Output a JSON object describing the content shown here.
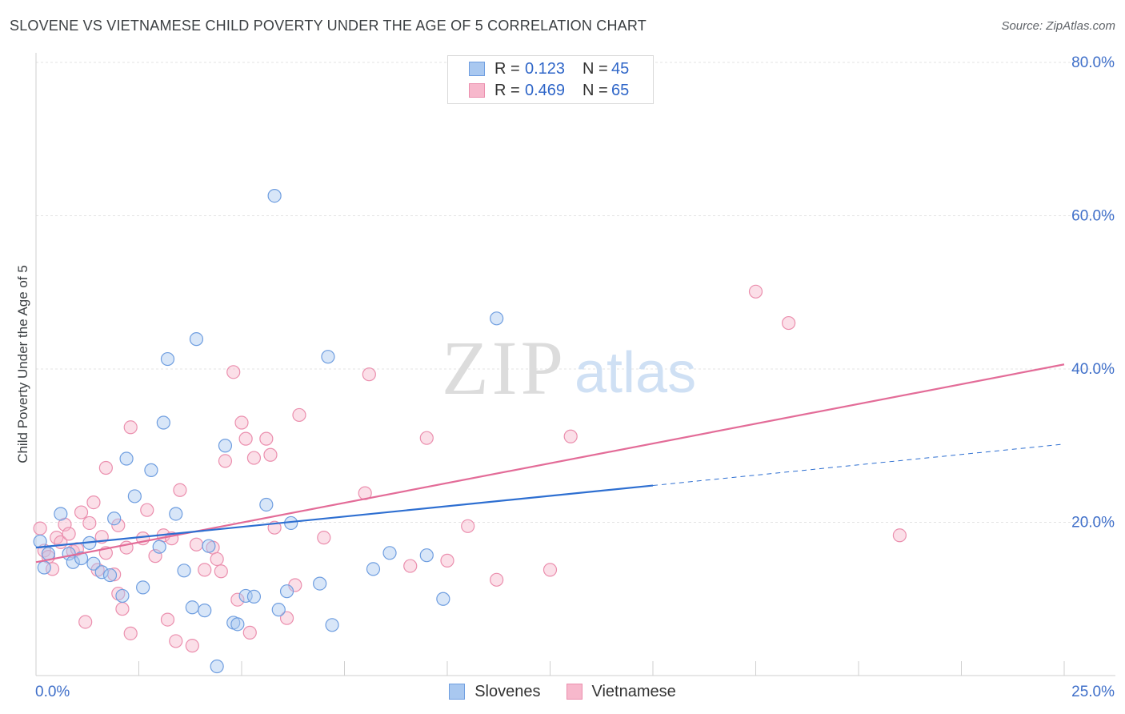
{
  "header": {
    "title": "SLOVENE VS VIETNAMESE CHILD POVERTY UNDER THE AGE OF 5 CORRELATION CHART",
    "source": "Source: ZipAtlas.com"
  },
  "legend": {
    "rows": [
      {
        "r_label": "R =",
        "r_value": "0.123",
        "n_label": "N =",
        "n_value": "45"
      },
      {
        "r_label": "R =",
        "r_value": "0.469",
        "n_label": "N =",
        "n_value": "65"
      }
    ]
  },
  "bottom_legend": {
    "series1": "Slovenes",
    "series2": "Vietnamese"
  },
  "colors": {
    "slovene_fill": "#a9c8f0",
    "slovene_stroke": "#6f9ee0",
    "slovene_line": "#2e6fd1",
    "vietnamese_fill": "#f7b8cc",
    "vietnamese_stroke": "#eb8fae",
    "vietnamese_line": "#e36c98",
    "axis_label": "#3f6fc9",
    "grid": "#e3e3e3"
  },
  "watermark": {
    "zip": "ZIP",
    "atlas": "atlas"
  },
  "chart_data": {
    "type": "scatter",
    "title": "SLOVENE VS VIETNAMESE CHILD POVERTY UNDER THE AGE OF 5 CORRELATION CHART",
    "xlabel": "",
    "ylabel": "Child Poverty Under the Age of 5",
    "xlim": [
      0,
      25
    ],
    "ylim": [
      0,
      80
    ],
    "x_tick_labels": [
      {
        "value": 0,
        "label": "0.0%"
      },
      {
        "value": 25,
        "label": "25.0%"
      }
    ],
    "y_tick_labels": [
      {
        "value": 20,
        "label": "20.0%"
      },
      {
        "value": 40,
        "label": "40.0%"
      },
      {
        "value": 60,
        "label": "60.0%"
      },
      {
        "value": 80,
        "label": "80.0%"
      }
    ],
    "series": [
      {
        "name": "Slovenes",
        "R": 0.123,
        "N": 45,
        "trend": {
          "x0": 0,
          "y0": 16.7,
          "x1": 15,
          "y1": 24.8,
          "dash_x1": 25,
          "dash_y1": 30.2
        },
        "points": [
          [
            0.1,
            17.5
          ],
          [
            0.2,
            14.1
          ],
          [
            0.3,
            15.9
          ],
          [
            0.6,
            21.1
          ],
          [
            0.8,
            15.9
          ],
          [
            0.9,
            14.8
          ],
          [
            1.1,
            15.3
          ],
          [
            1.3,
            17.3
          ],
          [
            1.4,
            14.6
          ],
          [
            1.6,
            13.5
          ],
          [
            1.8,
            13.1
          ],
          [
            1.9,
            20.5
          ],
          [
            2.1,
            10.4
          ],
          [
            2.2,
            28.3
          ],
          [
            2.4,
            23.4
          ],
          [
            2.6,
            11.5
          ],
          [
            2.8,
            26.8
          ],
          [
            3.0,
            16.8
          ],
          [
            3.1,
            33.0
          ],
          [
            3.2,
            41.3
          ],
          [
            3.4,
            21.1
          ],
          [
            3.6,
            13.7
          ],
          [
            3.8,
            8.9
          ],
          [
            3.9,
            43.9
          ],
          [
            4.1,
            8.5
          ],
          [
            4.2,
            16.9
          ],
          [
            4.4,
            1.2
          ],
          [
            4.6,
            30.0
          ],
          [
            4.8,
            6.9
          ],
          [
            4.9,
            6.7
          ],
          [
            5.1,
            10.4
          ],
          [
            5.3,
            10.3
          ],
          [
            5.6,
            22.3
          ],
          [
            5.8,
            62.6
          ],
          [
            5.9,
            8.6
          ],
          [
            6.1,
            11.0
          ],
          [
            6.2,
            19.9
          ],
          [
            6.9,
            12.0
          ],
          [
            7.1,
            41.6
          ],
          [
            7.2,
            6.6
          ],
          [
            8.2,
            13.9
          ],
          [
            8.6,
            16.0
          ],
          [
            9.5,
            15.7
          ],
          [
            9.9,
            10.0
          ],
          [
            11.2,
            46.6
          ]
        ]
      },
      {
        "name": "Vietnamese",
        "R": 0.469,
        "N": 65,
        "trend": {
          "x0": 0,
          "y0": 14.8,
          "x1": 25,
          "y1": 40.6
        },
        "points": [
          [
            0.1,
            19.2
          ],
          [
            0.2,
            16.3
          ],
          [
            0.3,
            15.5
          ],
          [
            0.4,
            13.9
          ],
          [
            0.5,
            18.0
          ],
          [
            0.6,
            17.4
          ],
          [
            0.7,
            19.7
          ],
          [
            0.8,
            18.5
          ],
          [
            0.9,
            16.2
          ],
          [
            1.0,
            16.5
          ],
          [
            1.1,
            21.3
          ],
          [
            1.2,
            7.0
          ],
          [
            1.3,
            19.9
          ],
          [
            1.4,
            22.6
          ],
          [
            1.5,
            13.8
          ],
          [
            1.6,
            18.1
          ],
          [
            1.7,
            16.0
          ],
          [
            1.7,
            27.1
          ],
          [
            1.9,
            13.2
          ],
          [
            2.0,
            10.7
          ],
          [
            2.0,
            19.6
          ],
          [
            2.1,
            8.7
          ],
          [
            2.2,
            16.7
          ],
          [
            2.3,
            5.5
          ],
          [
            2.3,
            32.4
          ],
          [
            2.6,
            17.9
          ],
          [
            2.7,
            21.6
          ],
          [
            2.9,
            15.6
          ],
          [
            3.1,
            18.3
          ],
          [
            3.2,
            7.3
          ],
          [
            3.3,
            17.9
          ],
          [
            3.4,
            4.5
          ],
          [
            3.5,
            24.2
          ],
          [
            3.8,
            3.9
          ],
          [
            3.9,
            17.1
          ],
          [
            4.1,
            13.8
          ],
          [
            4.3,
            16.7
          ],
          [
            4.4,
            15.2
          ],
          [
            4.5,
            13.6
          ],
          [
            4.6,
            28.0
          ],
          [
            4.8,
            39.6
          ],
          [
            4.9,
            9.9
          ],
          [
            5.0,
            33.0
          ],
          [
            5.1,
            30.9
          ],
          [
            5.2,
            5.6
          ],
          [
            5.3,
            28.4
          ],
          [
            5.6,
            30.9
          ],
          [
            5.7,
            28.8
          ],
          [
            5.8,
            19.3
          ],
          [
            6.1,
            7.5
          ],
          [
            6.3,
            11.8
          ],
          [
            6.4,
            34.0
          ],
          [
            7.0,
            18.0
          ],
          [
            8.0,
            23.8
          ],
          [
            8.1,
            39.3
          ],
          [
            9.1,
            14.3
          ],
          [
            9.5,
            31.0
          ],
          [
            10.0,
            15.0
          ],
          [
            10.5,
            19.5
          ],
          [
            11.2,
            12.5
          ],
          [
            12.5,
            13.8
          ],
          [
            17.5,
            50.1
          ],
          [
            18.3,
            46.0
          ],
          [
            21.0,
            18.3
          ],
          [
            13.0,
            31.2
          ]
        ]
      }
    ]
  }
}
